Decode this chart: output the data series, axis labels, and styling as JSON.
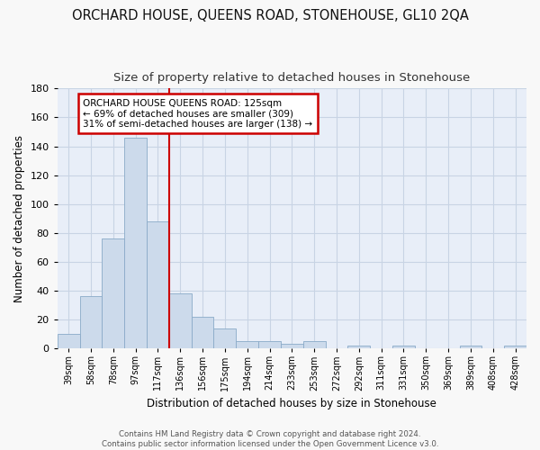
{
  "title": "ORCHARD HOUSE, QUEENS ROAD, STONEHOUSE, GL10 2QA",
  "subtitle": "Size of property relative to detached houses in Stonehouse",
  "xlabel": "Distribution of detached houses by size in Stonehouse",
  "ylabel": "Number of detached properties",
  "bar_values": [
    10,
    36,
    76,
    146,
    88,
    38,
    22,
    14,
    5,
    5,
    3,
    5,
    0,
    2,
    0,
    2,
    0,
    0,
    2,
    0,
    2
  ],
  "bar_labels": [
    "39sqm",
    "58sqm",
    "78sqm",
    "97sqm",
    "117sqm",
    "136sqm",
    "156sqm",
    "175sqm",
    "194sqm",
    "214sqm",
    "233sqm",
    "253sqm",
    "272sqm",
    "292sqm",
    "311sqm",
    "331sqm",
    "350sqm",
    "369sqm",
    "389sqm",
    "408sqm",
    "428sqm"
  ],
  "bar_color": "#ccdaeb",
  "bar_edge_color": "#8aaac8",
  "grid_color": "#c8d4e4",
  "background_color": "#e8eef8",
  "vertical_line_x": 4.5,
  "vertical_line_color": "#cc0000",
  "annotation_text": "ORCHARD HOUSE QUEENS ROAD: 125sqm\n← 69% of detached houses are smaller (309)\n31% of semi-detached houses are larger (138) →",
  "annotation_box_color": "#ffffff",
  "annotation_border_color": "#cc0000",
  "ylim": [
    0,
    180
  ],
  "yticks": [
    0,
    20,
    40,
    60,
    80,
    100,
    120,
    140,
    160,
    180
  ],
  "footer_text": "Contains HM Land Registry data © Crown copyright and database right 2024.\nContains public sector information licensed under the Open Government Licence v3.0.",
  "title_fontsize": 10.5,
  "subtitle_fontsize": 9.5,
  "xlabel_fontsize": 8.5,
  "ylabel_fontsize": 8.5,
  "fig_width": 6.0,
  "fig_height": 5.0,
  "fig_dpi": 100
}
